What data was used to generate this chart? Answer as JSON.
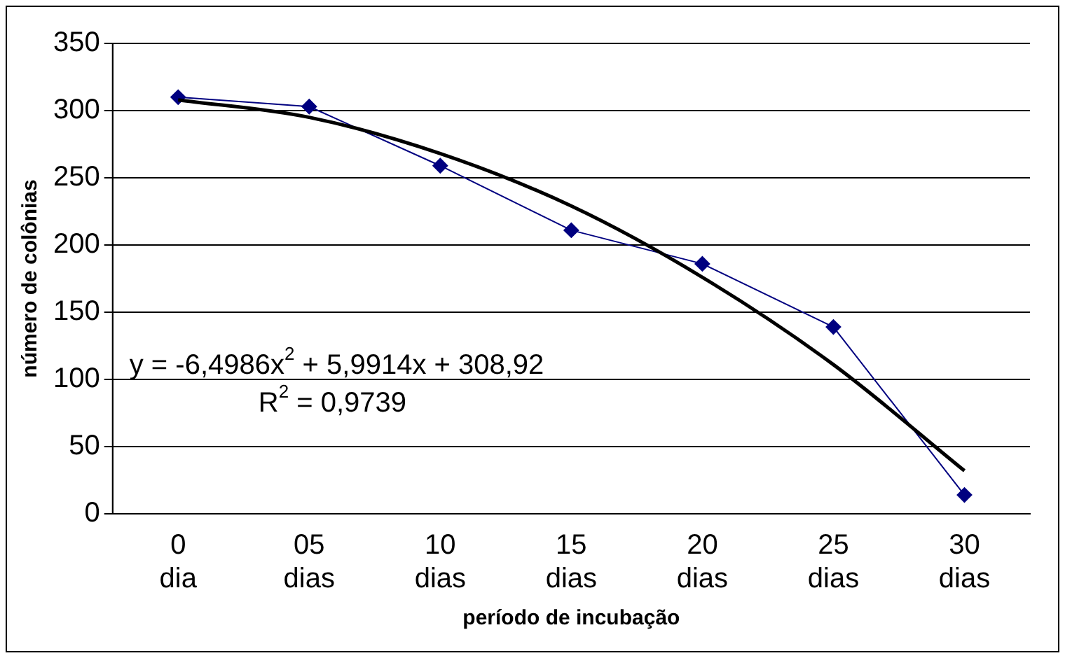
{
  "chart_data": {
    "type": "line",
    "xlabel": "período de incubação",
    "ylabel": "número de colônias",
    "categories": [
      "0 dia",
      "05 dias",
      "10 dias",
      "15 dias",
      "20 dias",
      "25 dias",
      "30 dias"
    ],
    "series": [
      {
        "color": "#000080",
        "values": [
          310,
          303,
          259,
          211,
          186,
          139,
          14
        ]
      },
      {
        "color": "#000000",
        "marker": "none",
        "values": [
          308,
          295,
          268,
          229,
          176,
          111,
          32
        ]
      }
    ],
    "ylim": [
      0,
      350
    ],
    "yticks": [
      0,
      50,
      100,
      150,
      200,
      250,
      300,
      350
    ],
    "grid": "y",
    "legend": false,
    "marker": "diamond",
    "line_style": "solid",
    "annotations": [
      "y = -6,4986x$^{2}$ + 5,9914x + 308,92",
      "R$^{2}$ = 0,9739"
    ]
  }
}
